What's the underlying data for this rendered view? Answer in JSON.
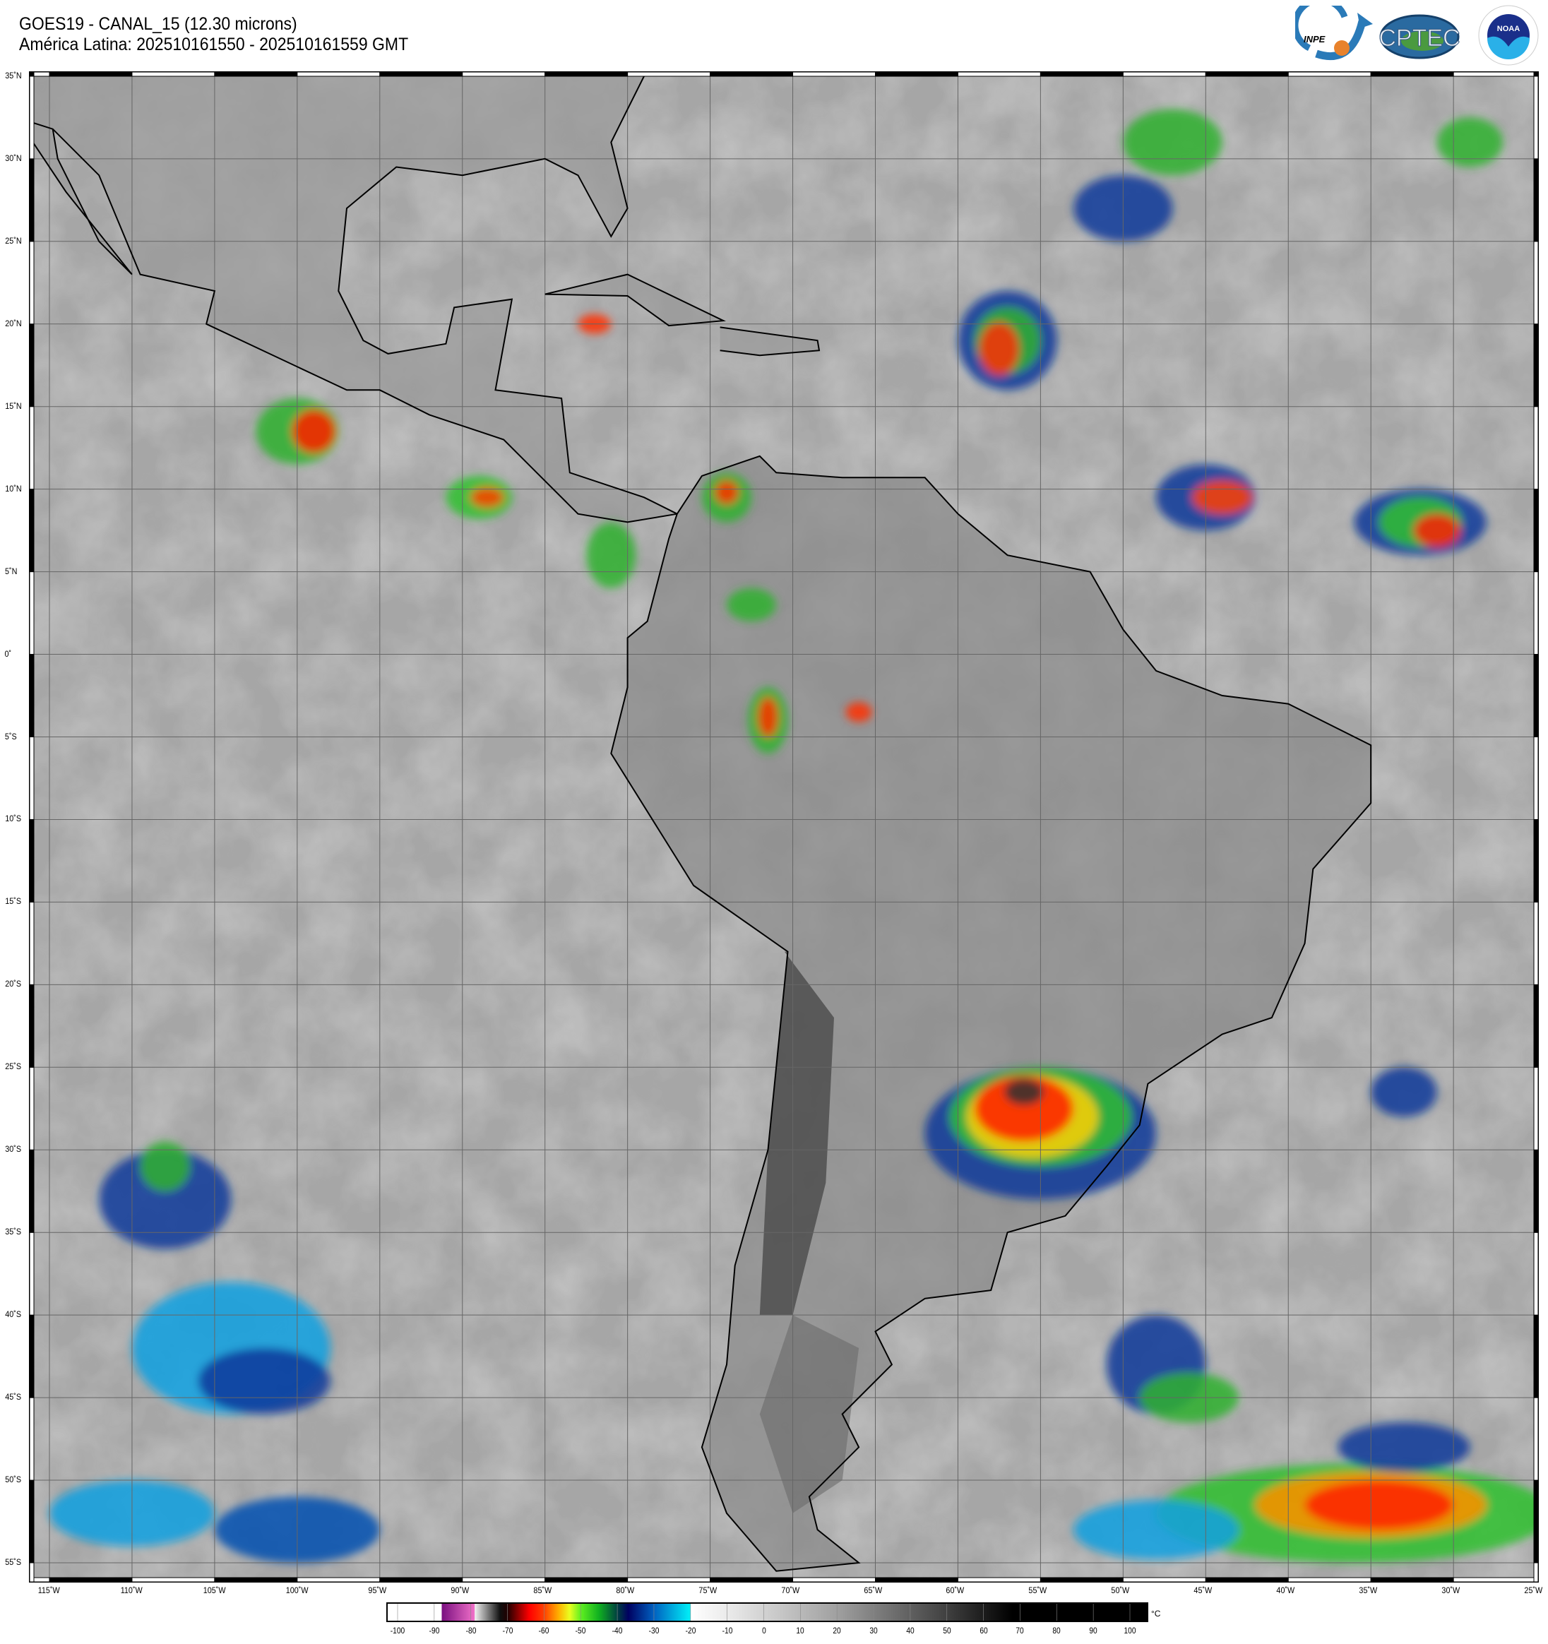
{
  "header": {
    "title_line1": "GOES19 - CANAL_15 (12.30 microns)",
    "title_line2": "América Latina: 202510161550 - 202510161559 GMT"
  },
  "logos": {
    "inpe": "INPE",
    "cptec": "CPTEC",
    "noaa": "NOAA",
    "noaa_ring": "NATIONAL OCEANIC AND ATMOSPHERIC ADMINISTRATION · U.S. DEPARTMENT OF COMMERCE"
  },
  "map": {
    "projection": "equirectangular",
    "lon_range": [
      -116.2,
      -24.9
    ],
    "lat_range": [
      -56.1,
      35.2
    ],
    "grid_step_deg": 5,
    "lat_labels": [
      "35˚N",
      "30˚N",
      "25˚N",
      "20˚N",
      "15˚N",
      "10˚N",
      "5˚N",
      "0˚",
      "5˚S",
      "10˚S",
      "15˚S",
      "20˚S",
      "25˚S",
      "30˚S",
      "35˚S",
      "40˚S",
      "45˚S",
      "50˚S",
      "55˚S"
    ],
    "lon_labels": [
      "115˚W",
      "110˚W",
      "105˚W",
      "100˚W",
      "95˚W",
      "90˚W",
      "85˚W",
      "80˚W",
      "75˚W",
      "70˚W",
      "65˚W",
      "60˚W",
      "55˚W",
      "50˚W",
      "45˚W",
      "40˚W",
      "35˚W",
      "30˚W",
      "25˚W"
    ]
  },
  "colorbar": {
    "unit": "°C",
    "range": [
      -100,
      100
    ],
    "ticks": [
      "-100",
      "-90",
      "-80",
      "-70",
      "-60",
      "-50",
      "-40",
      "-30",
      "-20",
      "-10",
      "0",
      "10",
      "20",
      "30",
      "40",
      "50",
      "60",
      "70",
      "80",
      "90",
      "100"
    ],
    "stops": [
      {
        "v": -100,
        "c": "#ffffff"
      },
      {
        "v": -88,
        "c": "#ffffff"
      },
      {
        "v": -87.9,
        "c": "#7a1080"
      },
      {
        "v": -79,
        "c": "#f070c8"
      },
      {
        "v": -78.9,
        "c": "#f0f0f0"
      },
      {
        "v": -72,
        "c": "#101010"
      },
      {
        "v": -70,
        "c": "#200000"
      },
      {
        "v": -64,
        "c": "#ff0000"
      },
      {
        "v": -60,
        "c": "#ff4000"
      },
      {
        "v": -56,
        "c": "#ffb000"
      },
      {
        "v": -53,
        "c": "#e8ff20"
      },
      {
        "v": -50,
        "c": "#60f020"
      },
      {
        "v": -45,
        "c": "#10b020"
      },
      {
        "v": -40,
        "c": "#004040"
      },
      {
        "v": -37,
        "c": "#000060"
      },
      {
        "v": -30,
        "c": "#0060c0"
      },
      {
        "v": -20.1,
        "c": "#00f0f8"
      },
      {
        "v": -20,
        "c": "#ffffff"
      },
      {
        "v": -10,
        "c": "#ebebeb"
      },
      {
        "v": 20,
        "c": "#a0a0a0"
      },
      {
        "v": 50,
        "c": "#404040"
      },
      {
        "v": 68,
        "c": "#000000"
      },
      {
        "v": 100,
        "c": "#000000"
      }
    ]
  }
}
